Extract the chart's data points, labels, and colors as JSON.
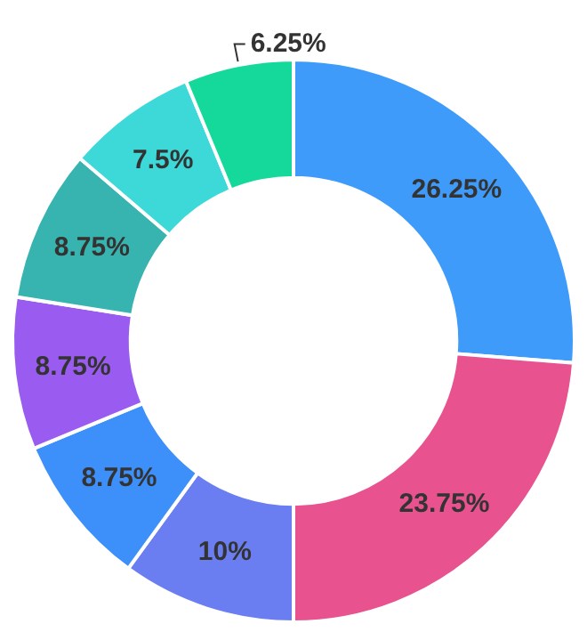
{
  "chart_data": {
    "type": "donut",
    "categories": [
      null,
      null,
      null,
      null,
      null,
      null,
      null,
      null
    ],
    "values": [
      26.25,
      23.75,
      10,
      8.75,
      8.75,
      8.75,
      7.5,
      6.25
    ],
    "colors": [
      "#3f9bfa",
      "#e8528f",
      "#6a7ef2",
      "#3d90fa",
      "#9a5cf0",
      "#38b4b0",
      "#3dd8d8",
      "#14d99b"
    ],
    "value_labels": [
      "26.25%",
      "23.75%",
      "10%",
      "8.75%",
      "8.75%",
      "8.75%",
      "7.5%",
      "6.25%"
    ],
    "legend": false
  }
}
